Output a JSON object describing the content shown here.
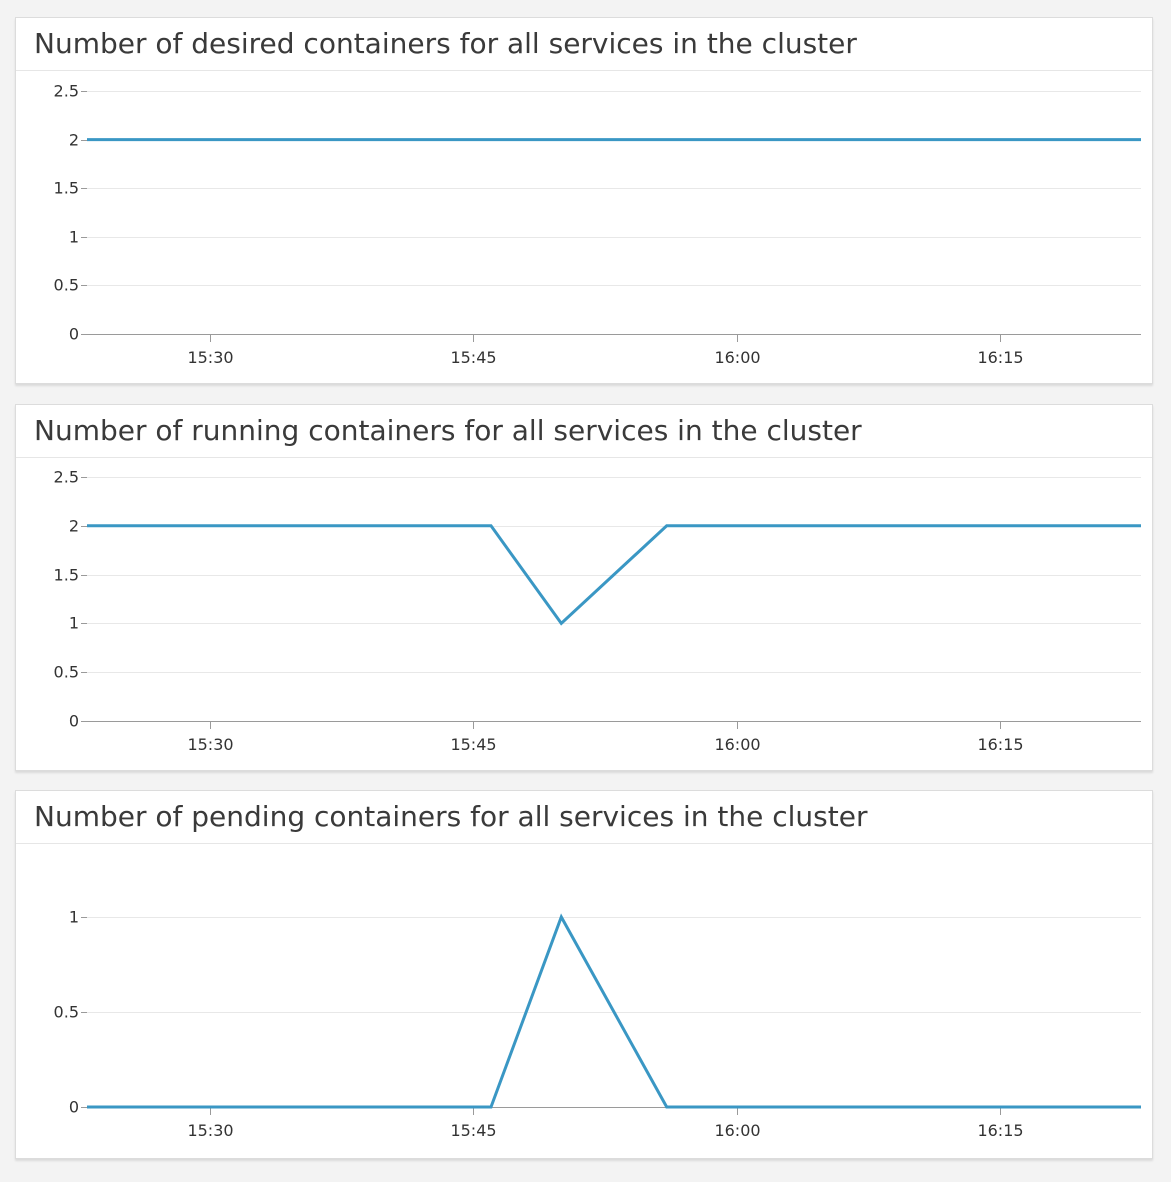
{
  "colors": {
    "line": "#3a97c4",
    "grid": "#e8e8e8",
    "axis": "#9a9a9a",
    "tick_text": "#333333"
  },
  "chart_data": [
    {
      "type": "line",
      "title": "Number of desired containers for all services in the cluster",
      "x_tick_labels": [
        "15:30",
        "15:45",
        "16:00",
        "16:15"
      ],
      "x_range": [
        "15:23",
        "16:23"
      ],
      "y_ticks": [
        "0",
        "0.5",
        "1",
        "1.5",
        "2",
        "2.5"
      ],
      "ylim": [
        0,
        2.5
      ],
      "grid": true,
      "series": [
        {
          "x": [
            "15:23",
            "16:23"
          ],
          "y": [
            2,
            2
          ]
        }
      ]
    },
    {
      "type": "line",
      "title": "Number of running containers for all services in the cluster",
      "x_tick_labels": [
        "15:30",
        "15:45",
        "16:00",
        "16:15"
      ],
      "x_range": [
        "15:23",
        "16:23"
      ],
      "y_ticks": [
        "0",
        "0.5",
        "1",
        "1.5",
        "2",
        "2.5"
      ],
      "ylim": [
        0,
        2.5
      ],
      "grid": true,
      "series": [
        {
          "x": [
            "15:23",
            "15:46",
            "15:50",
            "15:56",
            "16:23"
          ],
          "y": [
            2,
            2,
            1,
            2,
            2
          ]
        }
      ]
    },
    {
      "type": "line",
      "title": "Number of pending containers for all services in the cluster",
      "x_tick_labels": [
        "15:30",
        "15:45",
        "16:00",
        "16:15"
      ],
      "x_range": [
        "15:23",
        "16:23"
      ],
      "y_ticks": [
        "0",
        "0.5",
        "1"
      ],
      "ylim": [
        0,
        1.2
      ],
      "grid": true,
      "series": [
        {
          "x": [
            "15:23",
            "15:46",
            "15:50",
            "15:56",
            "16:23"
          ],
          "y": [
            0,
            0,
            1,
            0,
            0
          ]
        }
      ]
    }
  ]
}
